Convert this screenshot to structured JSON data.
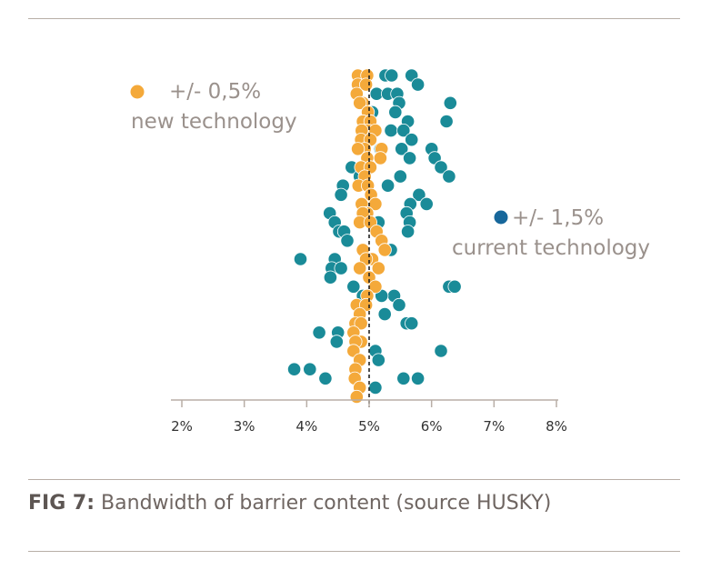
{
  "caption": {
    "label": "FIG 7:",
    "text": "Bandwidth of barrier content (source HUSKY)"
  },
  "colors": {
    "new_technology": "#f4a93a",
    "current_technology": "#1a8b98",
    "legend_current_dot": "#17679b",
    "text_gray": "#9a918c",
    "rule": "#b8aea6"
  },
  "chart_data": {
    "type": "scatter",
    "xlim": [
      2,
      8
    ],
    "x_ticks": [
      "2%",
      "3%",
      "4%",
      "5%",
      "6%",
      "7%",
      "8%"
    ],
    "reference_line": {
      "x": 5.0,
      "style": "dashed"
    },
    "legend": [
      {
        "tolerance": "+/- 0,5%",
        "label": "new technology"
      },
      {
        "tolerance": "+/- 1,5%",
        "label": "current technology"
      }
    ],
    "series": [
      {
        "key": "current",
        "x": [
          5.26,
          5.36,
          5.68,
          5.78,
          5.12,
          5.3,
          5.45,
          5.48,
          6.3,
          5.05,
          5.42,
          5.62,
          6.24,
          5.35,
          5.55,
          5.68,
          5.18,
          5.52,
          6.0,
          6.05,
          5.65,
          4.72,
          4.85,
          5.5,
          6.15,
          6.28,
          5.3,
          4.58,
          4.55,
          5.8,
          5.66,
          5.92,
          5.6,
          4.37,
          4.45,
          5.15,
          5.65,
          4.52,
          5.62,
          4.6,
          4.65,
          5.35,
          3.9,
          4.45,
          4.4,
          4.55,
          4.38,
          6.28,
          6.37,
          4.75,
          5.4,
          5.2,
          4.9,
          5.48,
          5.25,
          5.6,
          5.68,
          4.2,
          4.5,
          4.48,
          6.15,
          5.1,
          5.15,
          3.8,
          4.05,
          4.3,
          5.55,
          5.78,
          5.1
        ],
        "y_rank": [
          1,
          1,
          1,
          2,
          3,
          3,
          3,
          4,
          4,
          5,
          5,
          6,
          6,
          7,
          7,
          8,
          9,
          9,
          9,
          10,
          10,
          11,
          12,
          12,
          11,
          12,
          13,
          13,
          14,
          14,
          15,
          15,
          16,
          16,
          17,
          17,
          17,
          18,
          18,
          18,
          19,
          20,
          21,
          21,
          22,
          22,
          23,
          24,
          24,
          24,
          25,
          25,
          25,
          26,
          27,
          28,
          28,
          29,
          29,
          30,
          31,
          31,
          32,
          33,
          33,
          34,
          34,
          34,
          35
        ]
      },
      {
        "key": "new",
        "x": [
          4.82,
          4.97,
          4.82,
          4.95,
          4.8,
          4.9,
          4.85,
          4.98,
          4.9,
          5.02,
          4.98,
          4.88,
          5.1,
          4.87,
          5.02,
          4.93,
          5.2,
          4.82,
          4.97,
          5.18,
          4.87,
          5.02,
          4.93,
          4.83,
          4.98,
          5.03,
          4.88,
          5.1,
          4.97,
          4.9,
          4.85,
          5.02,
          5.12,
          5.2,
          5.25,
          4.9,
          5.05,
          4.95,
          5.15,
          4.85,
          5.0,
          5.1,
          4.97,
          4.8,
          4.95,
          4.85,
          4.78,
          4.87,
          4.75,
          4.87,
          4.78,
          4.75,
          4.85,
          4.78,
          4.77,
          4.85,
          4.8
        ],
        "y_rank": [
          1,
          1,
          2,
          2,
          3,
          4,
          4,
          5,
          6,
          6,
          7,
          7,
          7,
          8,
          8,
          9,
          9,
          9,
          10,
          10,
          11,
          11,
          12,
          13,
          13,
          14,
          15,
          15,
          16,
          16,
          17,
          17,
          18,
          19,
          20,
          20,
          21,
          21,
          22,
          22,
          23,
          24,
          25,
          26,
          26,
          27,
          28,
          28,
          29,
          30,
          30,
          31,
          32,
          33,
          34,
          35,
          36
        ]
      }
    ]
  }
}
